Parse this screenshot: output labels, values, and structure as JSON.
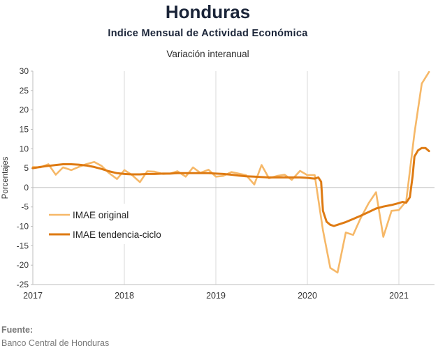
{
  "header": {
    "title": "Honduras",
    "subtitle": "Indice Mensual de  Actividad Económica",
    "subtitle2": "Variación interanual"
  },
  "source": {
    "heading": "Fuente:",
    "text": "Banco Central de Honduras"
  },
  "chart_data": {
    "type": "line",
    "ylabel": "Porcentajes",
    "ylim": [
      -25,
      30
    ],
    "yticks": [
      30,
      25,
      20,
      15,
      10,
      5,
      0,
      -5,
      -10,
      -15,
      -20,
      -25
    ],
    "xlim": [
      2017.0,
      2021.42
    ],
    "xticks": [
      "2017",
      "2018",
      "2019",
      "2020",
      "2021"
    ],
    "grid": true,
    "legend": "left-middle",
    "series": [
      {
        "name": "IMAE original",
        "color": "#f6b868",
        "points": [
          [
            2017.0,
            5.3
          ],
          [
            2017.08,
            5.2
          ],
          [
            2017.17,
            6.0
          ],
          [
            2017.25,
            3.3
          ],
          [
            2017.33,
            5.2
          ],
          [
            2017.42,
            4.5
          ],
          [
            2017.5,
            5.3
          ],
          [
            2017.58,
            6.0
          ],
          [
            2017.67,
            6.6
          ],
          [
            2017.75,
            5.6
          ],
          [
            2017.83,
            3.8
          ],
          [
            2017.92,
            2.2
          ],
          [
            2018.0,
            4.5
          ],
          [
            2018.08,
            3.3
          ],
          [
            2018.17,
            1.4
          ],
          [
            2018.25,
            4.2
          ],
          [
            2018.33,
            4.1
          ],
          [
            2018.42,
            3.5
          ],
          [
            2018.5,
            3.6
          ],
          [
            2018.58,
            4.2
          ],
          [
            2018.67,
            2.8
          ],
          [
            2018.75,
            5.2
          ],
          [
            2018.83,
            3.8
          ],
          [
            2018.92,
            4.6
          ],
          [
            2019.0,
            2.8
          ],
          [
            2019.08,
            3.0
          ],
          [
            2019.17,
            4.0
          ],
          [
            2019.25,
            3.6
          ],
          [
            2019.33,
            3.2
          ],
          [
            2019.42,
            0.8
          ],
          [
            2019.5,
            5.8
          ],
          [
            2019.58,
            2.4
          ],
          [
            2019.67,
            3.0
          ],
          [
            2019.75,
            3.3
          ],
          [
            2019.83,
            2.0
          ],
          [
            2019.92,
            4.3
          ],
          [
            2020.0,
            3.2
          ],
          [
            2020.08,
            3.2
          ],
          [
            2020.17,
            -11.0
          ],
          [
            2020.25,
            -20.7
          ],
          [
            2020.33,
            -21.9
          ],
          [
            2020.42,
            -11.6
          ],
          [
            2020.5,
            -12.2
          ],
          [
            2020.58,
            -8.0
          ],
          [
            2020.67,
            -4.0
          ],
          [
            2020.75,
            -1.2
          ],
          [
            2020.83,
            -12.7
          ],
          [
            2020.92,
            -6.0
          ],
          [
            2021.0,
            -5.8
          ],
          [
            2021.08,
            -3.5
          ],
          [
            2021.17,
            14.0
          ],
          [
            2021.25,
            26.8
          ],
          [
            2021.33,
            29.8
          ]
        ]
      },
      {
        "name": "IMAE tendencia-ciclo",
        "color": "#de7a12",
        "points": [
          [
            2017.0,
            5.0
          ],
          [
            2017.08,
            5.3
          ],
          [
            2017.17,
            5.6
          ],
          [
            2017.25,
            5.8
          ],
          [
            2017.33,
            6.0
          ],
          [
            2017.42,
            6.0
          ],
          [
            2017.5,
            5.9
          ],
          [
            2017.58,
            5.7
          ],
          [
            2017.67,
            5.3
          ],
          [
            2017.75,
            4.8
          ],
          [
            2017.83,
            4.2
          ],
          [
            2017.92,
            3.7
          ],
          [
            2018.0,
            3.5
          ],
          [
            2018.08,
            3.4
          ],
          [
            2018.17,
            3.4
          ],
          [
            2018.25,
            3.5
          ],
          [
            2018.33,
            3.5
          ],
          [
            2018.42,
            3.6
          ],
          [
            2018.5,
            3.6
          ],
          [
            2018.58,
            3.7
          ],
          [
            2018.67,
            3.7
          ],
          [
            2018.75,
            3.7
          ],
          [
            2018.83,
            3.7
          ],
          [
            2018.92,
            3.7
          ],
          [
            2019.0,
            3.6
          ],
          [
            2019.08,
            3.5
          ],
          [
            2019.17,
            3.3
          ],
          [
            2019.25,
            3.1
          ],
          [
            2019.33,
            2.9
          ],
          [
            2019.42,
            2.8
          ],
          [
            2019.5,
            2.7
          ],
          [
            2019.58,
            2.6
          ],
          [
            2019.67,
            2.6
          ],
          [
            2019.75,
            2.6
          ],
          [
            2019.83,
            2.6
          ],
          [
            2019.92,
            2.6
          ],
          [
            2020.0,
            2.5
          ],
          [
            2020.04,
            2.4
          ],
          [
            2020.08,
            2.3
          ],
          [
            2020.12,
            2.6
          ],
          [
            2020.15,
            1.5
          ],
          [
            2020.17,
            -6.0
          ],
          [
            2020.21,
            -8.8
          ],
          [
            2020.25,
            -9.6
          ],
          [
            2020.29,
            -9.9
          ],
          [
            2020.33,
            -9.6
          ],
          [
            2020.42,
            -8.9
          ],
          [
            2020.5,
            -8.1
          ],
          [
            2020.58,
            -7.3
          ],
          [
            2020.67,
            -6.3
          ],
          [
            2020.75,
            -5.4
          ],
          [
            2020.83,
            -4.9
          ],
          [
            2020.92,
            -4.5
          ],
          [
            2021.0,
            -4.0
          ],
          [
            2021.04,
            -3.7
          ],
          [
            2021.08,
            -3.9
          ],
          [
            2021.12,
            -2.5
          ],
          [
            2021.15,
            3.0
          ],
          [
            2021.17,
            8.0
          ],
          [
            2021.21,
            9.6
          ],
          [
            2021.25,
            10.2
          ],
          [
            2021.29,
            10.2
          ],
          [
            2021.33,
            9.4
          ]
        ]
      }
    ]
  }
}
